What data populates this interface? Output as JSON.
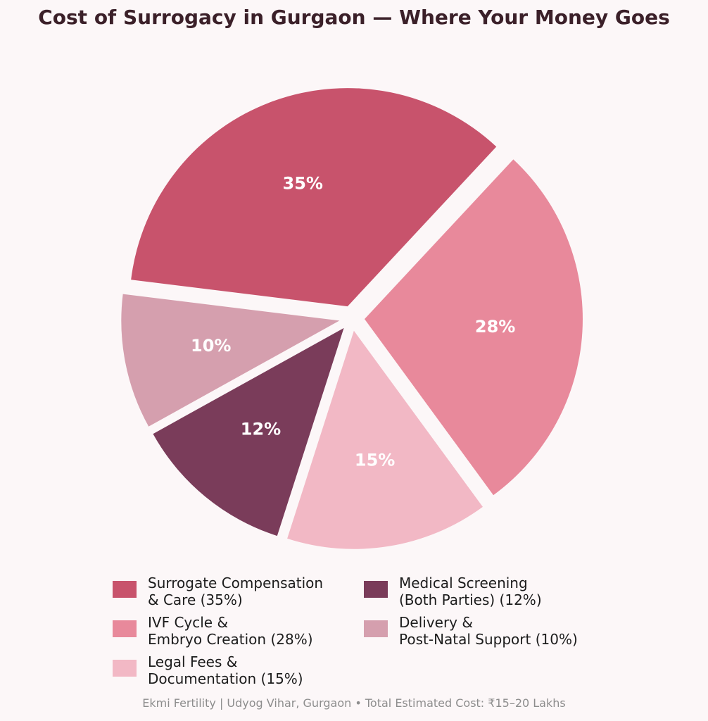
{
  "chart_data": {
    "type": "pie",
    "title": "Cost of Surrogacy in Gurgaon — Where Your Money Goes",
    "slices": [
      {
        "label_lines": [
          "Surrogate Compensation",
          "& Care  (35%)"
        ],
        "value": 35,
        "display": "35%",
        "color": "#c8536c"
      },
      {
        "label_lines": [
          "IVF Cycle &",
          "Embryo Creation  (28%)"
        ],
        "value": 28,
        "display": "28%",
        "color": "#e8899b"
      },
      {
        "label_lines": [
          "Legal Fees &",
          "Documentation  (15%)"
        ],
        "value": 15,
        "display": "15%",
        "color": "#f2b8c5"
      },
      {
        "label_lines": [
          "Medical Screening",
          "(Both Parties)  (12%)"
        ],
        "value": 12,
        "display": "12%",
        "color": "#7a3c5a"
      },
      {
        "label_lines": [
          "Delivery &",
          "Post-Natal Support  (10%)"
        ],
        "value": 10,
        "display": "10%",
        "color": "#d59fae"
      }
    ],
    "legend_position": "bottom"
  },
  "footer": "Ekmi Fertility | Udyog Vihar, Gurgaon  •  Total Estimated Cost: ₹15–20 Lakhs"
}
